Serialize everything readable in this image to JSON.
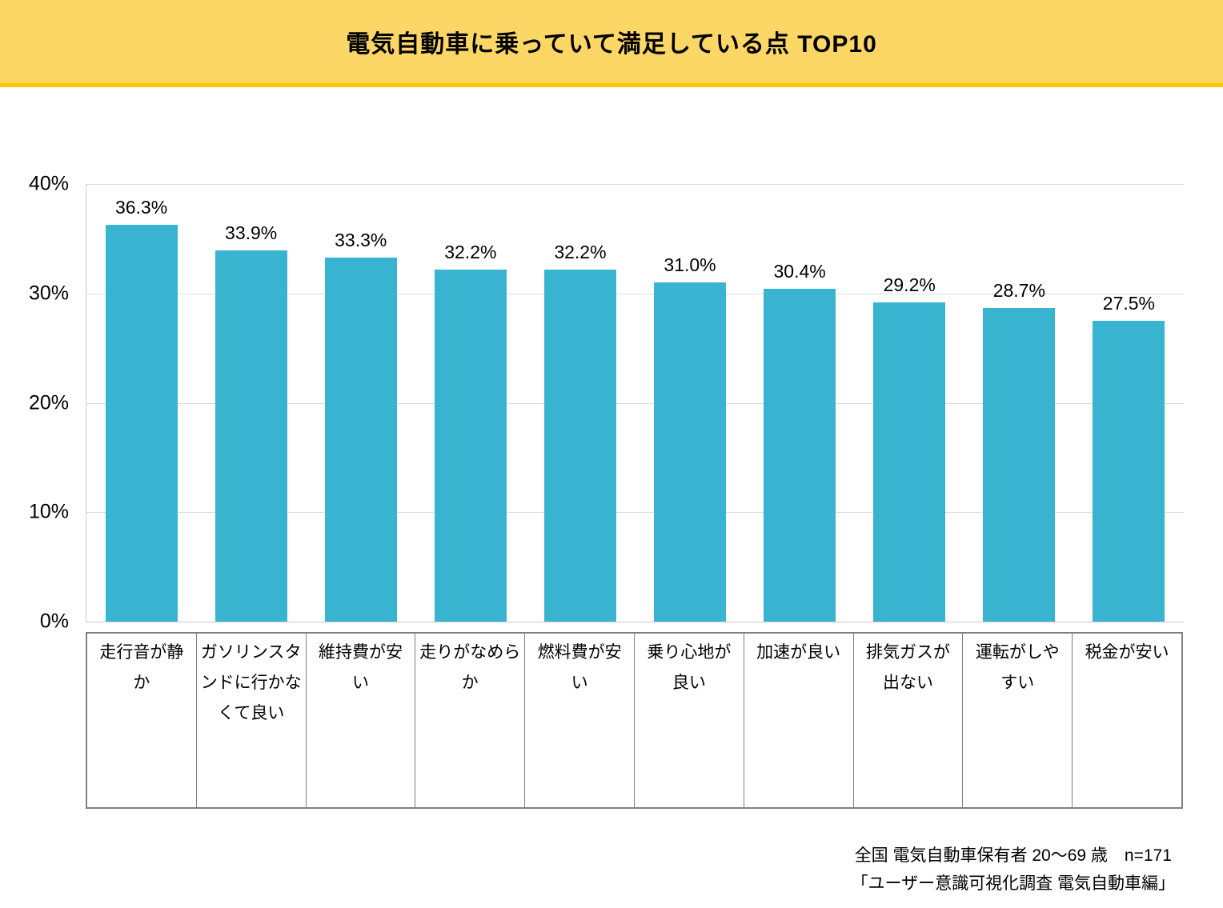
{
  "header": {
    "title": "電気自動車に乗っていて満足している点 TOP10",
    "band_color": "#FCD765",
    "band_border_color": "#F6C900"
  },
  "chart_data": {
    "type": "bar",
    "title": "電気自動車に乗っていて満足している点 TOP10",
    "categories": [
      "走行音が静か",
      "ガソリンスタンドに行かなくて良い",
      "維持費が安い",
      "走りがなめらか",
      "燃料費が安い",
      "乗り心地が良い",
      "加速が良い",
      "排気ガスが出ない",
      "運転がしやすい",
      "税金が安い"
    ],
    "categories_display": [
      "走行音が静\nか",
      "ガソリンスタ\nンドに行かな\nくて良い",
      "維持費が安\nい",
      "走りがなめら\nか",
      "燃料費が安\nい",
      "乗り心地が\n良い",
      "加速が良い",
      "排気ガスが\n出ない",
      "運転がしや\nすい",
      "税金が安い"
    ],
    "values": [
      36.3,
      33.9,
      33.3,
      32.2,
      32.2,
      31.0,
      30.4,
      29.2,
      28.7,
      27.5
    ],
    "value_labels": [
      "36.3%",
      "33.9%",
      "33.3%",
      "32.2%",
      "32.2%",
      "31.0%",
      "30.4%",
      "29.2%",
      "28.7%",
      "27.5%"
    ],
    "unit": "%",
    "ylim": [
      0,
      40
    ],
    "ytick_labels": [
      "40%",
      "30%",
      "20%",
      "10%",
      "0%"
    ],
    "grid": true,
    "legend": "none",
    "bar_color": "#39B4D0"
  },
  "footer": {
    "line1": "全国 電気自動車保有者 20～69 歳　n=171",
    "line2": "「ユーザー意識可視化調査 電気自動車編」"
  }
}
